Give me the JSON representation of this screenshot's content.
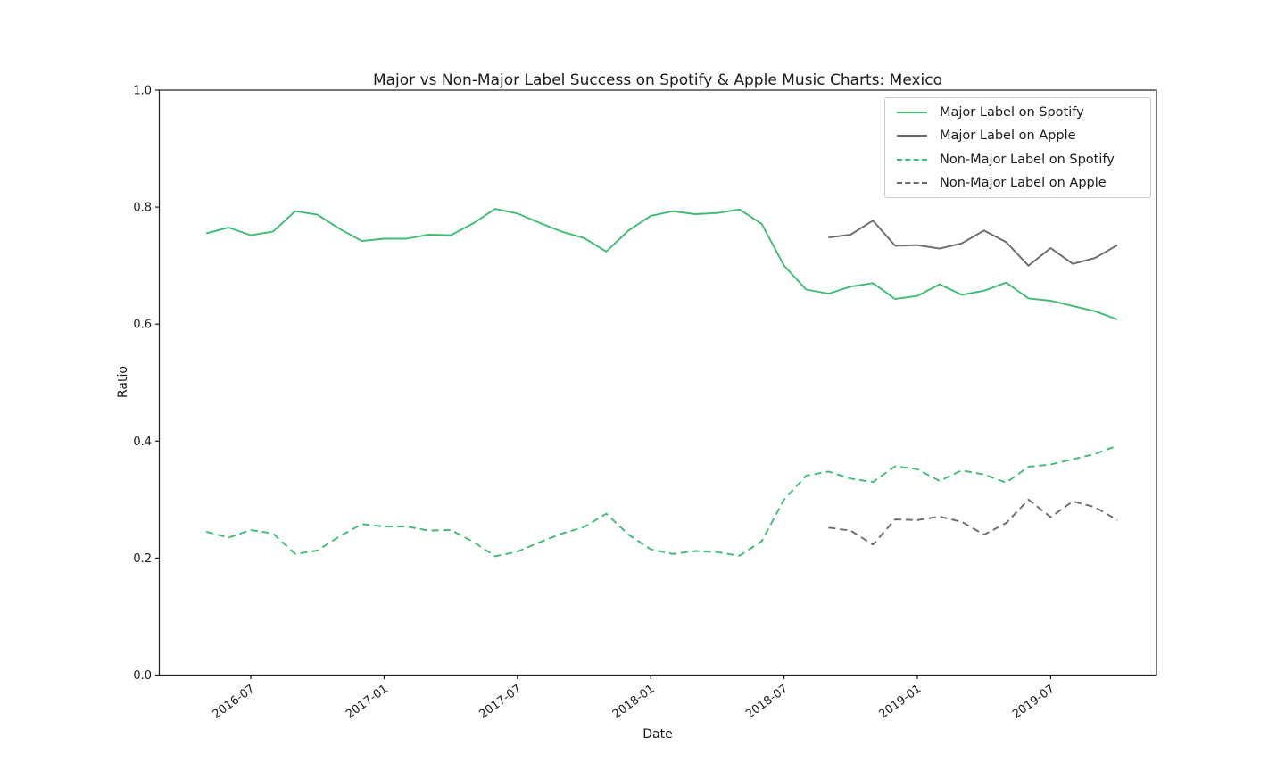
{
  "figure": {
    "title": "Major vs Non-Major Label Success on Spotify & Apple Music Charts: Mexico",
    "xlabel": "Date",
    "ylabel": "Ratio"
  },
  "colors": {
    "spotify_green": "#3dbd73",
    "apple_gray": "#6b6b6b",
    "axis_black": "#1a1a1a",
    "legend_border": "#c9c9c9"
  },
  "chart_data": {
    "type": "line",
    "title": "Major vs Non-Major Label Success on Spotify & Apple Music Charts: Mexico",
    "xlabel": "Date",
    "ylabel": "Ratio",
    "ylim": [
      0.0,
      1.0
    ],
    "grid": false,
    "legend_position": "upper right",
    "y_ticks": [
      "0.0",
      "0.2",
      "0.4",
      "0.6",
      "0.8",
      "1.0"
    ],
    "x_ticks": [
      "2016-07",
      "2017-01",
      "2017-07",
      "2018-01",
      "2018-07",
      "2019-01",
      "2019-07"
    ],
    "series": [
      {
        "name": "Major Label on Spotify",
        "color": "#3dbd73",
        "style": "solid",
        "x": [
          "2016-05",
          "2016-06",
          "2016-07",
          "2016-08",
          "2016-09",
          "2016-10",
          "2016-11",
          "2016-12",
          "2017-01",
          "2017-02",
          "2017-03",
          "2017-04",
          "2017-05",
          "2017-06",
          "2017-07",
          "2017-08",
          "2017-09",
          "2017-10",
          "2017-11",
          "2017-12",
          "2018-01",
          "2018-02",
          "2018-03",
          "2018-04",
          "2018-05",
          "2018-06",
          "2018-07",
          "2018-08",
          "2018-09",
          "2018-10",
          "2018-11",
          "2018-12",
          "2019-01",
          "2019-02",
          "2019-03",
          "2019-04",
          "2019-05",
          "2019-06",
          "2019-07",
          "2019-08",
          "2019-09",
          "2019-10"
        ],
        "values": [
          0.755,
          0.765,
          0.752,
          0.758,
          0.793,
          0.787,
          0.763,
          0.742,
          0.746,
          0.746,
          0.753,
          0.752,
          0.772,
          0.797,
          0.789,
          0.773,
          0.758,
          0.747,
          0.724,
          0.76,
          0.785,
          0.793,
          0.788,
          0.79,
          0.796,
          0.771,
          0.7,
          0.659,
          0.652,
          0.664,
          0.67,
          0.643,
          0.648,
          0.668,
          0.65,
          0.657,
          0.671,
          0.644,
          0.64,
          0.631,
          0.622,
          0.608
        ]
      },
      {
        "name": "Major Label on Apple",
        "color": "#6b6b6b",
        "style": "solid",
        "x": [
          "2018-09",
          "2018-10",
          "2018-11",
          "2018-12",
          "2019-01",
          "2019-02",
          "2019-03",
          "2019-04",
          "2019-05",
          "2019-06",
          "2019-07",
          "2019-08",
          "2019-09",
          "2019-10"
        ],
        "values": [
          0.748,
          0.753,
          0.777,
          0.734,
          0.735,
          0.729,
          0.738,
          0.76,
          0.74,
          0.7,
          0.73,
          0.703,
          0.713,
          0.735
        ]
      },
      {
        "name": "Non-Major Label on Spotify",
        "color": "#3dbd73",
        "style": "dashed",
        "x": [
          "2016-05",
          "2016-06",
          "2016-07",
          "2016-08",
          "2016-09",
          "2016-10",
          "2016-11",
          "2016-12",
          "2017-01",
          "2017-02",
          "2017-03",
          "2017-04",
          "2017-05",
          "2017-06",
          "2017-07",
          "2017-08",
          "2017-09",
          "2017-10",
          "2017-11",
          "2017-12",
          "2018-01",
          "2018-02",
          "2018-03",
          "2018-04",
          "2018-05",
          "2018-06",
          "2018-07",
          "2018-08",
          "2018-09",
          "2018-10",
          "2018-11",
          "2018-12",
          "2019-01",
          "2019-02",
          "2019-03",
          "2019-04",
          "2019-05",
          "2019-06",
          "2019-07",
          "2019-08",
          "2019-09",
          "2019-10"
        ],
        "values": [
          0.245,
          0.235,
          0.248,
          0.242,
          0.207,
          0.213,
          0.237,
          0.258,
          0.254,
          0.254,
          0.247,
          0.248,
          0.228,
          0.203,
          0.211,
          0.227,
          0.242,
          0.253,
          0.276,
          0.24,
          0.215,
          0.207,
          0.212,
          0.21,
          0.204,
          0.229,
          0.3,
          0.341,
          0.348,
          0.336,
          0.33,
          0.357,
          0.352,
          0.332,
          0.35,
          0.343,
          0.329,
          0.356,
          0.36,
          0.369,
          0.378,
          0.392
        ]
      },
      {
        "name": "Non-Major Label on Apple",
        "color": "#6b6b6b",
        "style": "dashed",
        "x": [
          "2018-09",
          "2018-10",
          "2018-11",
          "2018-12",
          "2019-01",
          "2019-02",
          "2019-03",
          "2019-04",
          "2019-05",
          "2019-06",
          "2019-07",
          "2019-08",
          "2019-09",
          "2019-10"
        ],
        "values": [
          0.252,
          0.247,
          0.223,
          0.266,
          0.265,
          0.271,
          0.262,
          0.24,
          0.26,
          0.3,
          0.27,
          0.297,
          0.287,
          0.265
        ]
      }
    ]
  }
}
